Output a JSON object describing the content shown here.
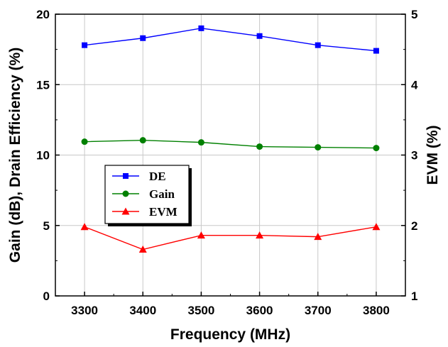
{
  "chart_data": {
    "type": "line",
    "x": [
      3300,
      3400,
      3500,
      3600,
      3700,
      3800
    ],
    "xlabel": "Frequency (MHz)",
    "ylabel_left": "Gain (dB), Drain Efficiency (%)",
    "ylabel_right": "EVM (%)",
    "xlim": [
      3250,
      3850
    ],
    "xticks": [
      "3300",
      "3400",
      "3500",
      "3600",
      "3700",
      "3800"
    ],
    "ylim_left": [
      0,
      20
    ],
    "yticks_left": [
      "0",
      "5",
      "10",
      "15",
      "20"
    ],
    "ylim_right": [
      1,
      5
    ],
    "yticks_right": [
      "1",
      "2",
      "3",
      "4",
      "5"
    ],
    "grid": true,
    "legend_position": "middle-left",
    "series": [
      {
        "name": "DE",
        "axis": "left",
        "color": "#0000ff",
        "marker": "square",
        "values": [
          17.8,
          18.3,
          19.0,
          18.45,
          17.8,
          17.4
        ]
      },
      {
        "name": "Gain",
        "axis": "left",
        "color": "#008000",
        "marker": "circle",
        "values": [
          10.95,
          11.05,
          10.9,
          10.6,
          10.55,
          10.5
        ]
      },
      {
        "name": "EVM",
        "axis": "right",
        "color": "#ff0000",
        "marker": "triangle",
        "values": [
          1.98,
          1.66,
          1.86,
          1.86,
          1.84,
          1.98
        ]
      }
    ]
  }
}
